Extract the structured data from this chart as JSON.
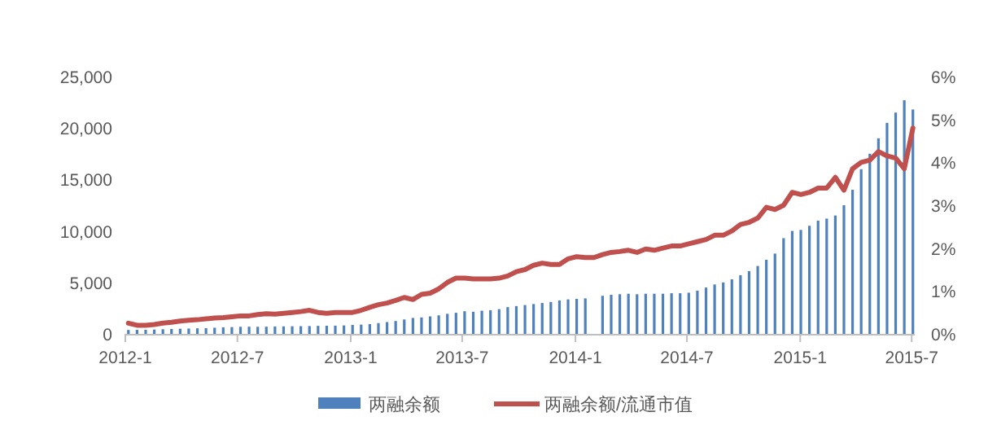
{
  "chart_data": {
    "type": "bar",
    "x": [
      "2012-01-06",
      "2012-01-20",
      "2012-02-03",
      "2012-02-17",
      "2012-03-02",
      "2012-03-16",
      "2012-03-30",
      "2012-04-13",
      "2012-04-27",
      "2012-05-11",
      "2012-05-25",
      "2012-06-08",
      "2012-06-22",
      "2012-07-06",
      "2012-07-20",
      "2012-08-03",
      "2012-08-17",
      "2012-08-31",
      "2012-09-14",
      "2012-09-28",
      "2012-10-12",
      "2012-10-26",
      "2012-11-09",
      "2012-11-23",
      "2012-12-07",
      "2012-12-21",
      "2013-01-04",
      "2013-01-18",
      "2013-02-01",
      "2013-02-15",
      "2013-03-01",
      "2013-03-15",
      "2013-03-29",
      "2013-04-12",
      "2013-04-26",
      "2013-05-10",
      "2013-05-24",
      "2013-06-07",
      "2013-06-21",
      "2013-07-05",
      "2013-07-19",
      "2013-08-02",
      "2013-08-16",
      "2013-08-30",
      "2013-09-13",
      "2013-09-27",
      "2013-10-11",
      "2013-10-25",
      "2013-11-08",
      "2013-11-22",
      "2013-12-06",
      "2013-12-20",
      "2014-01-03",
      "2014-01-17",
      "2014-01-31",
      "2014-02-14",
      "2014-02-28",
      "2014-03-14",
      "2014-03-28",
      "2014-04-11",
      "2014-04-25",
      "2014-05-09",
      "2014-05-23",
      "2014-06-06",
      "2014-06-20",
      "2014-07-04",
      "2014-07-18",
      "2014-08-01",
      "2014-08-15",
      "2014-08-29",
      "2014-09-12",
      "2014-09-26",
      "2014-10-10",
      "2014-10-24",
      "2014-11-07",
      "2014-11-21",
      "2014-12-05",
      "2014-12-19",
      "2015-01-02",
      "2015-01-16",
      "2015-01-30",
      "2015-02-13",
      "2015-02-27",
      "2015-03-13",
      "2015-03-27",
      "2015-04-10",
      "2015-04-24",
      "2015-05-08",
      "2015-05-22",
      "2015-06-05",
      "2015-06-19",
      "2015-07-03"
    ],
    "series": [
      {
        "name": "两融余额",
        "color": "#4f81bd",
        "values": [
          380,
          390,
          400,
          420,
          450,
          480,
          500,
          520,
          540,
          560,
          600,
          640,
          660,
          690,
          700,
          690,
          700,
          720,
          730,
          740,
          750,
          760,
          780,
          790,
          800,
          820,
          870,
          900,
          950,
          1050,
          1150,
          1250,
          1400,
          1550,
          1600,
          1700,
          1800,
          1950,
          2050,
          2200,
          2150,
          2250,
          2300,
          2400,
          2600,
          2700,
          2800,
          2900,
          3000,
          3100,
          3250,
          3350,
          3400,
          3450,
          null,
          3700,
          3800,
          3850,
          3900,
          3850,
          3900,
          3900,
          3900,
          3950,
          3950,
          4000,
          4200,
          4500,
          4800,
          5000,
          5300,
          5700,
          6100,
          6600,
          7200,
          7800,
          9300,
          10000,
          10100,
          10500,
          11000,
          11200,
          11500,
          12500,
          14000,
          16000,
          17500,
          19000,
          20500,
          21500,
          22700,
          21800
        ]
      },
      {
        "name": "两融余额/流通市值",
        "type": "line",
        "axis": "y2",
        "color": "#c0504d",
        "values": [
          0.25,
          0.2,
          0.2,
          0.22,
          0.25,
          0.27,
          0.3,
          0.32,
          0.33,
          0.35,
          0.37,
          0.38,
          0.4,
          0.42,
          0.42,
          0.45,
          0.47,
          0.46,
          0.48,
          0.5,
          0.52,
          0.55,
          0.5,
          0.48,
          0.5,
          0.5,
          0.5,
          0.55,
          0.62,
          0.68,
          0.72,
          0.78,
          0.85,
          0.8,
          0.92,
          0.95,
          1.05,
          1.2,
          1.3,
          1.3,
          1.28,
          1.28,
          1.28,
          1.3,
          1.35,
          1.45,
          1.5,
          1.6,
          1.65,
          1.62,
          1.62,
          1.75,
          1.8,
          1.78,
          1.78,
          1.85,
          1.9,
          1.92,
          1.95,
          1.9,
          1.98,
          1.95,
          2.0,
          2.05,
          2.05,
          2.1,
          2.15,
          2.2,
          2.3,
          2.3,
          2.4,
          2.55,
          2.6,
          2.7,
          2.95,
          2.9,
          3.0,
          3.3,
          3.25,
          3.3,
          3.4,
          3.4,
          3.65,
          3.35,
          3.85,
          4.0,
          4.05,
          4.25,
          4.15,
          4.1,
          3.85,
          4.8
        ]
      }
    ],
    "xlim": [
      "2012-01-01",
      "2015-07-06"
    ],
    "xticks": [
      {
        "value": "2012-01-01",
        "label": "2012-1"
      },
      {
        "value": "2012-07-01",
        "label": "2012-7"
      },
      {
        "value": "2013-01-01",
        "label": "2013-1"
      },
      {
        "value": "2013-07-01",
        "label": "2013-7"
      },
      {
        "value": "2014-01-01",
        "label": "2014-1"
      },
      {
        "value": "2014-07-01",
        "label": "2014-7"
      },
      {
        "value": "2015-01-01",
        "label": "2015-1"
      },
      {
        "value": "2015-07-01",
        "label": "2015-7"
      }
    ],
    "ylim": [
      0,
      25000
    ],
    "yticks": [
      {
        "value": 0,
        "label": "0"
      },
      {
        "value": 5000,
        "label": "5,000"
      },
      {
        "value": 10000,
        "label": "10,000"
      },
      {
        "value": 15000,
        "label": "15,000"
      },
      {
        "value": 20000,
        "label": "20,000"
      },
      {
        "value": 25000,
        "label": "25,000"
      }
    ],
    "y2lim": [
      0,
      6
    ],
    "y2ticks": [
      {
        "value": 0,
        "label": "0%"
      },
      {
        "value": 1,
        "label": "1%"
      },
      {
        "value": 2,
        "label": "2%"
      },
      {
        "value": 3,
        "label": "3%"
      },
      {
        "value": 4,
        "label": "4%"
      },
      {
        "value": 5,
        "label": "5%"
      },
      {
        "value": 6,
        "label": "6%"
      }
    ],
    "legend": "bottom",
    "grid": false,
    "marker": "none",
    "line_style": "solid"
  }
}
